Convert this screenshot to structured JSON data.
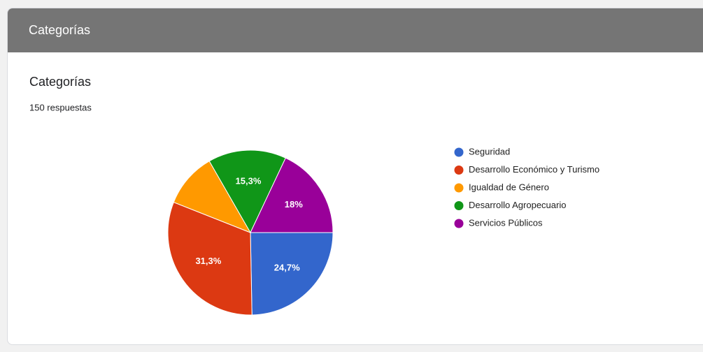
{
  "header": {
    "title": "Categorías"
  },
  "chart_data": {
    "type": "pie",
    "title": "Categorías",
    "subtitle": "150 respuestas",
    "categories": [
      "Seguridad",
      "Desarrollo Económico y Turismo",
      "Igualdad de Género",
      "Desarrollo Agropecuario",
      "Servicios Públicos"
    ],
    "values": [
      24.7,
      31.3,
      10.7,
      15.3,
      18
    ],
    "value_labels": [
      "24,7%",
      "31,3%",
      null,
      "15,3%",
      "18%"
    ],
    "colors": [
      "#3366cc",
      "#dc3912",
      "#ff9900",
      "#109618",
      "#990099"
    ],
    "legend": "right"
  }
}
